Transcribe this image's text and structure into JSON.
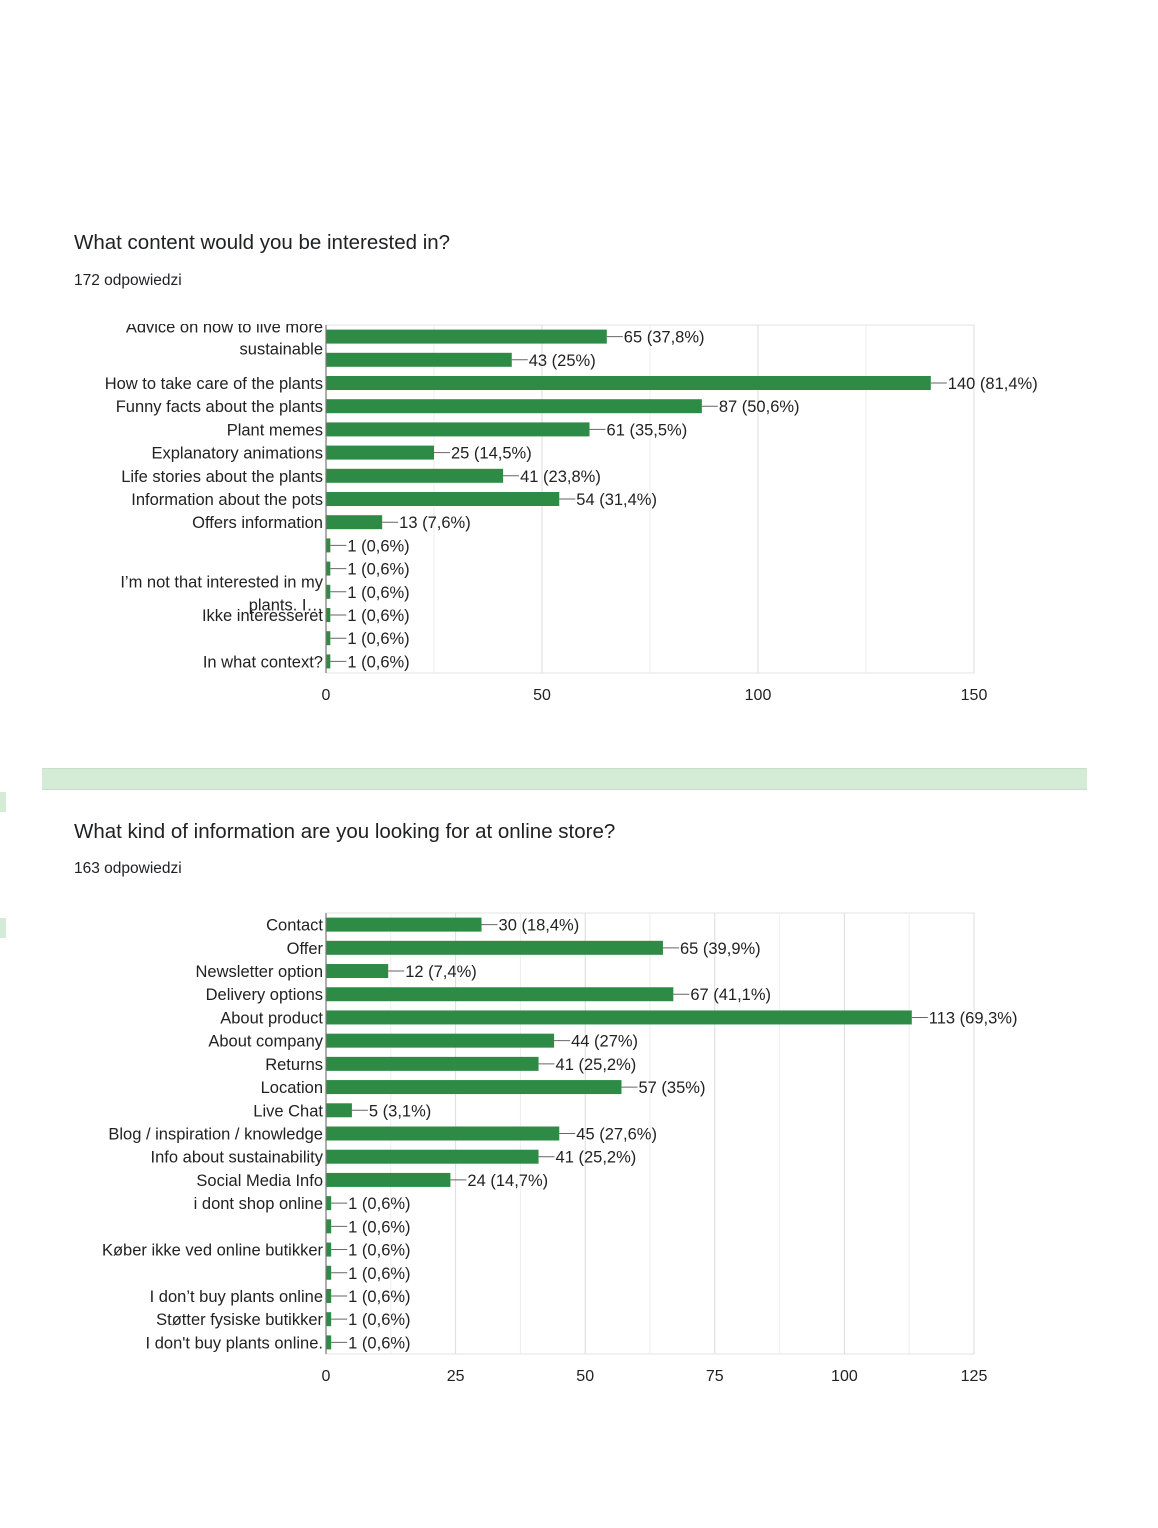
{
  "colors": {
    "bar": "#2e8b45",
    "grid": "#e3e3e3",
    "axis": "#777777",
    "band": "#d4ebd6"
  },
  "questions": [
    {
      "title": "What content would you be interested in?",
      "count": "172 odpowiedzi"
    },
    {
      "title": "What kind of information are you looking for at online store?",
      "count": "163 odpowiedzi"
    }
  ],
  "chart_data": [
    {
      "type": "bar",
      "orientation": "horizontal",
      "xlim": [
        0,
        150
      ],
      "ticks": [
        "0",
        "50",
        "100",
        "150"
      ],
      "tick_values": [
        0,
        50,
        100,
        150
      ],
      "grid": true,
      "categories": [
        "Advice on how to live more sustainable",
        "",
        "How to take care of the plants",
        "Funny facts about the plants",
        "Plant memes",
        "Explanatory animations",
        "Life stories about the plants",
        "Information about the pots",
        "Offers information",
        "",
        "I’m not that interested in my plants. I…",
        "",
        "Ikke interesseret",
        "",
        "In what context?"
      ],
      "category_label_lines": [
        [
          "Advice on how to live more",
          "sustainable"
        ],
        [],
        [
          "How to take care of the plants"
        ],
        [
          "Funny facts about the plants"
        ],
        [
          "Plant memes"
        ],
        [
          "Explanatory animations"
        ],
        [
          "Life stories about the plants"
        ],
        [
          "Information about the pots"
        ],
        [
          "Offers information"
        ],
        [],
        [
          "I’m not that interested in my",
          "plants. I…"
        ],
        [],
        [
          "Ikke interesseret"
        ],
        [],
        [
          "In what context?"
        ]
      ],
      "values": [
        65,
        43,
        140,
        87,
        61,
        25,
        41,
        54,
        13,
        1,
        1,
        1,
        1,
        1,
        1
      ],
      "data_labels": [
        "65 (37,8%)",
        "43 (25%)",
        "140 (81,4%)",
        "87 (50,6%)",
        "61 (35,5%)",
        "25 (14,5%)",
        "41 (23,8%)",
        "54 (31,4%)",
        "13 (7,6%)",
        "1 (0,6%)",
        "1 (0,6%)",
        "1 (0,6%)",
        "1 (0,6%)",
        "1 (0,6%)",
        "1 (0,6%)"
      ]
    },
    {
      "type": "bar",
      "orientation": "horizontal",
      "xlim": [
        0,
        125
      ],
      "ticks": [
        "0",
        "25",
        "50",
        "75",
        "100",
        "125"
      ],
      "tick_values": [
        0,
        25,
        50,
        75,
        100,
        125
      ],
      "grid": true,
      "categories": [
        "Contact",
        "Offer",
        "Newsletter option",
        "Delivery options",
        "About product",
        "About company",
        "Returns",
        "Location",
        "Live Chat",
        "Blog / inspiration / knowledge",
        "Info about sustainability",
        "Social Media Info",
        "i dont shop online",
        "",
        "Køber ikke ved online butikker",
        "",
        "I don’t buy plants online",
        "Støtter fysiske butikker",
        "I don't buy plants online."
      ],
      "category_label_lines": [
        [
          "Contact"
        ],
        [
          "Offer"
        ],
        [
          "Newsletter option"
        ],
        [
          "Delivery options"
        ],
        [
          "About product"
        ],
        [
          "About company"
        ],
        [
          "Returns"
        ],
        [
          "Location"
        ],
        [
          "Live Chat"
        ],
        [
          "Blog / inspiration / knowledge"
        ],
        [
          "Info about sustainability"
        ],
        [
          "Social Media Info"
        ],
        [
          "i dont shop online"
        ],
        [],
        [
          "Køber ikke ved online butikker"
        ],
        [],
        [
          "I don’t buy plants online"
        ],
        [
          "Støtter fysiske butikker"
        ],
        [
          "I don't buy plants online."
        ]
      ],
      "values": [
        30,
        65,
        12,
        67,
        113,
        44,
        41,
        57,
        5,
        45,
        41,
        24,
        1,
        1,
        1,
        1,
        1,
        1,
        1
      ],
      "data_labels": [
        "30 (18,4%)",
        "65 (39,9%)",
        "12 (7,4%)",
        "67 (41,1%)",
        "113 (69,3%)",
        "44 (27%)",
        "41 (25,2%)",
        "57 (35%)",
        "5 (3,1%)",
        "45 (27,6%)",
        "41 (25,2%)",
        "24 (14,7%)",
        "1 (0,6%)",
        "1 (0,6%)",
        "1 (0,6%)",
        "1 (0,6%)",
        "1 (0,6%)",
        "1 (0,6%)",
        "1 (0,6%)"
      ]
    }
  ]
}
